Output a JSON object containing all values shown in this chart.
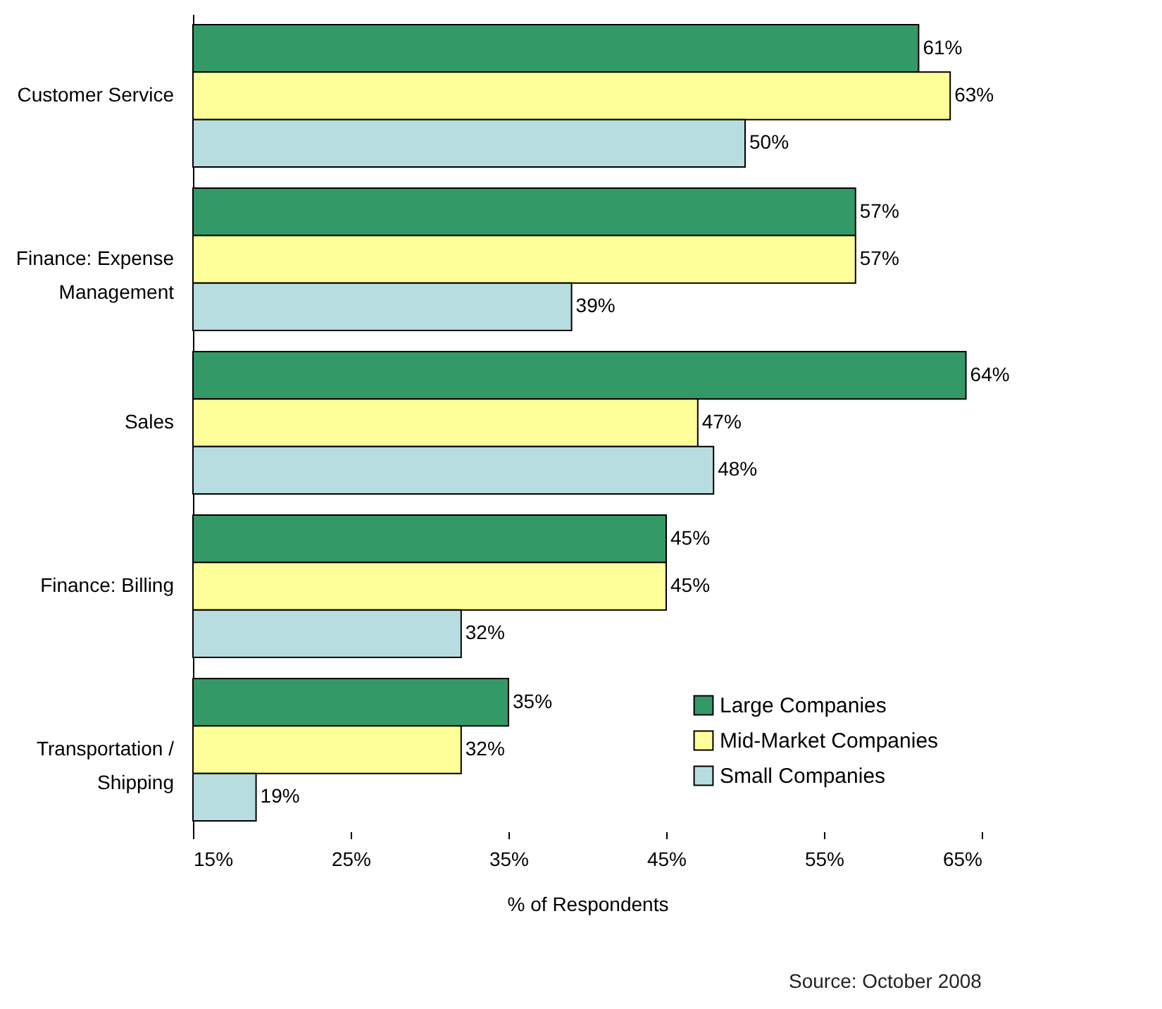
{
  "chart_data": {
    "type": "bar",
    "orientation": "horizontal",
    "xlabel": "% of Respondents",
    "categories": [
      "Customer Service",
      "Finance: Expense Management",
      "Sales",
      "Finance: Billing",
      "Transportation / Shipping"
    ],
    "series": [
      {
        "name": "Large Companies",
        "color": "#339966",
        "values": [
          61,
          57,
          64,
          45,
          35
        ],
        "value_labels": [
          "61%",
          "57%",
          "64%",
          "45%",
          "35%"
        ]
      },
      {
        "name": "Mid-Market Companies",
        "color": "#ffff99",
        "values": [
          63,
          57,
          47,
          45,
          32
        ],
        "value_labels": [
          "63%",
          "57%",
          "47%",
          "45%",
          "32%"
        ]
      },
      {
        "name": "Small Companies",
        "color": "#b7dde0",
        "values": [
          50,
          39,
          48,
          32,
          19
        ],
        "value_labels": [
          "50%",
          "39%",
          "48%",
          "32%",
          "19%"
        ]
      }
    ],
    "xlim": [
      15,
      65
    ],
    "xticks": [
      {
        "value": 15,
        "label": "15%"
      },
      {
        "value": 25,
        "label": "25%"
      },
      {
        "value": 35,
        "label": "35%"
      },
      {
        "value": 45,
        "label": "45%"
      },
      {
        "value": 55,
        "label": "55%"
      },
      {
        "value": 65,
        "label": "65%"
      }
    ],
    "grid": false,
    "legend": "bottom right",
    "annotations": [
      "Source: October 2008"
    ]
  }
}
